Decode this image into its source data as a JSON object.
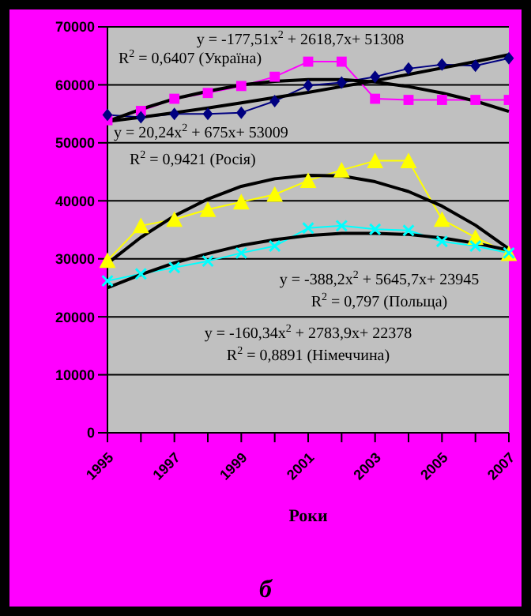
{
  "chart_data": {
    "type": "line",
    "xlabel": "Роки",
    "categories": [
      "1995",
      null,
      "1997",
      null,
      "1999",
      null,
      "2001",
      null,
      "2003",
      null,
      "2005",
      null,
      "2007"
    ],
    "series": [
      {
        "color": "#ff00ff",
        "marker": "square",
        "values": [
          53900,
          55500,
          57600,
          58600,
          59800,
          61400,
          64000,
          64000,
          57600,
          57400,
          57400,
          57400,
          57400
        ]
      },
      {
        "color": "#000080",
        "marker": "diamond",
        "values": [
          54800,
          54400,
          55000,
          55000,
          55200,
          57200,
          59900,
          60400,
          61400,
          62800,
          63500,
          63300,
          64600
        ]
      },
      {
        "color": "#ffff00",
        "marker": "triangle",
        "values": [
          29700,
          35700,
          36800,
          38500,
          39800,
          41100,
          43500,
          45300,
          46900,
          46900,
          36800,
          33700,
          30900
        ]
      },
      {
        "color": "#00ffff",
        "marker": "cross",
        "values": [
          26200,
          27400,
          28500,
          29600,
          31000,
          32200,
          35300,
          35700,
          35100,
          34900,
          33000,
          32200,
          31000
        ]
      },
      {
        "type": "line",
        "color": "#000000",
        "marker": "none",
        "values": [
          53700,
          55800,
          57600,
          58900,
          60000,
          60600,
          60900,
          60900,
          60500,
          59700,
          58600,
          57200,
          55400
        ]
      },
      {
        "type": "line",
        "color": "#000000",
        "marker": "none",
        "values": [
          53700,
          54400,
          55200,
          56000,
          56900,
          57800,
          58700,
          59700,
          60700,
          61800,
          62900,
          64000,
          65200
        ]
      },
      {
        "type": "line",
        "color": "#000000",
        "marker": "none",
        "values": [
          29200,
          33700,
          37400,
          40300,
          42500,
          43800,
          44400,
          44300,
          43300,
          41600,
          39100,
          35800,
          31700
        ]
      },
      {
        "type": "line",
        "color": "#000000",
        "marker": "none",
        "values": [
          25000,
          27300,
          29300,
          30900,
          32300,
          33300,
          34000,
          34400,
          34400,
          34200,
          33600,
          32700,
          31500
        ]
      }
    ],
    "ylim": [
      0,
      70000
    ],
    "yticks": [
      0,
      10000,
      20000,
      30000,
      40000,
      50000,
      60000,
      70000
    ],
    "grid": "y",
    "annotations": [
      "y = -177,51x$^{2}$ + 2618,7x+ 51308",
      "R$^{2}$ = 0,6407 (Україна)",
      "y = 20,24x$^{2}$ + 675x+ 53009",
      "R$^{2}$ = 0,9421 (Росія)",
      "y = -388,2x$^{2}$ + 5645,7x+ 23945",
      "R$^{2}$ = 0,797 (Польща)",
      "y = -160,34x$^{2}$ + 2783,9x+ 22378",
      "R$^{2}$ = 0,8891 (Німеччина)",
      "б"
    ]
  }
}
